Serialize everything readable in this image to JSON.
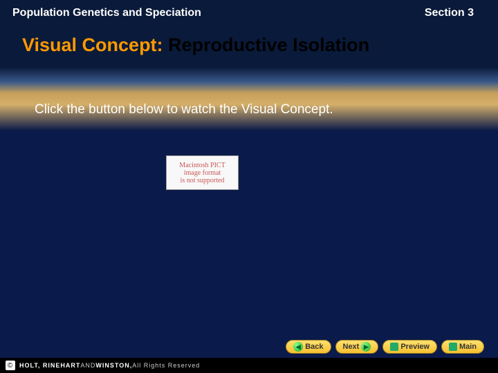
{
  "header": {
    "left": "Population Genetics and Speciation",
    "right": "Section 3"
  },
  "title": {
    "prefix": "Visual Concept: ",
    "main": "Reproductive Isolation"
  },
  "instruction": "Click the button below to watch the Visual Concept.",
  "pict": {
    "line1": "Macintosh PICT",
    "line2": "image format",
    "line3": "is not supported"
  },
  "nav": {
    "back": "Back",
    "next": "Next",
    "preview": "Preview",
    "main": "Main"
  },
  "footer": {
    "publisher": "HOLT, RINEHART ",
    "and": "AND",
    "winston": " WINSTON, ",
    "rights": "All Rights Reserved"
  },
  "colors": {
    "accent_orange": "#ff9900",
    "nav_button_bg": "#f5c030",
    "dark_bg": "#0a1a4a"
  }
}
